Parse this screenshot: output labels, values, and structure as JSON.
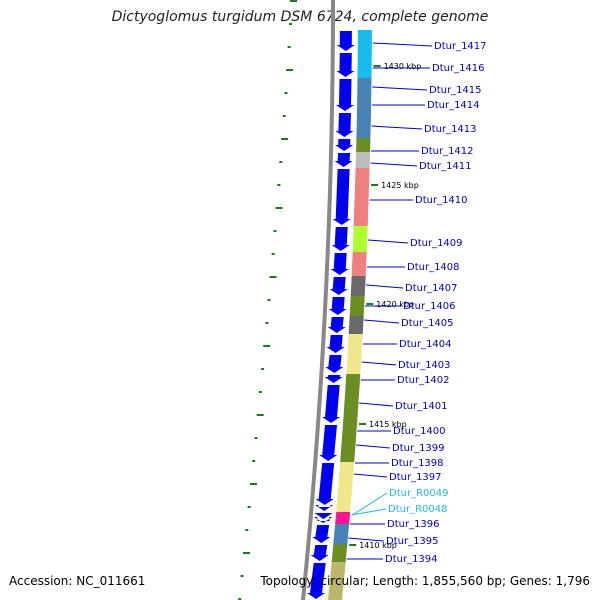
{
  "title": "Dictyoglomus turgidum DSM 6724, complete genome",
  "footer": {
    "accession": "Accession: NC_011661",
    "summary": "Topology: circular; Length: 1,855,560 bp; Genes: 1,796"
  },
  "colors": {
    "strand": "#0000ee",
    "gene_label": "#0000cc",
    "rna_label": "#22bbdd",
    "backbone": "#888888",
    "tick": "#227722"
  },
  "ticks": [
    "1430 kbp",
    "1425 kbp",
    "1420 kbp",
    "1415 kbp",
    "1410 kbp"
  ],
  "genes": [
    {
      "name": "Dtur_1417",
      "type": "gene",
      "color": "#18bbee"
    },
    {
      "name": "Dtur_1416",
      "type": "gene",
      "color": "#18bbee"
    },
    {
      "name": "Dtur_1415",
      "type": "gene",
      "color": "#4682b4"
    },
    {
      "name": "Dtur_1414",
      "type": "gene",
      "color": "#4682b4"
    },
    {
      "name": "Dtur_1413",
      "type": "gene",
      "color": "#6b8e23"
    },
    {
      "name": "Dtur_1412",
      "type": "gene",
      "color": "#bcbcbc"
    },
    {
      "name": "Dtur_1411",
      "type": "gene",
      "color": "#f08080"
    },
    {
      "name": "Dtur_1410",
      "type": "gene",
      "color": "#adff2f"
    },
    {
      "name": "Dtur_1409",
      "type": "gene",
      "color": "#f08080"
    },
    {
      "name": "Dtur_1408",
      "type": "gene",
      "color": "#696969"
    },
    {
      "name": "Dtur_1407",
      "type": "gene",
      "color": "#6b8e23"
    },
    {
      "name": "Dtur_1406",
      "type": "gene",
      "color": "#696969"
    },
    {
      "name": "Dtur_1405",
      "type": "gene",
      "color": "#f0e68c"
    },
    {
      "name": "Dtur_1404",
      "type": "gene",
      "color": "#f0e68c"
    },
    {
      "name": "Dtur_1403",
      "type": "gene",
      "color": "#6b8e23"
    },
    {
      "name": "Dtur_1402",
      "type": "gene",
      "color": "#6b8e23"
    },
    {
      "name": "Dtur_1401",
      "type": "gene",
      "color": "#6b8e23"
    },
    {
      "name": "Dtur_1400",
      "type": "gene",
      "color": "#f0e68c"
    },
    {
      "name": "Dtur_1399",
      "type": "gene",
      "color": "#f0e68c"
    },
    {
      "name": "Dtur_1398",
      "type": "gene",
      "color": "#ff1493"
    },
    {
      "name": "Dtur_1397",
      "type": "gene",
      "color": "#ff1493"
    },
    {
      "name": "Dtur_R0049",
      "type": "rna",
      "color": "#00ffff"
    },
    {
      "name": "Dtur_R0048",
      "type": "rna",
      "color": "#00ffff"
    },
    {
      "name": "Dtur_1396",
      "type": "gene",
      "color": "#4682b4"
    },
    {
      "name": "Dtur_1395",
      "type": "gene",
      "color": "#6b8e23"
    },
    {
      "name": "Dtur_1394",
      "type": "gene",
      "color": "#bdb76b"
    }
  ]
}
